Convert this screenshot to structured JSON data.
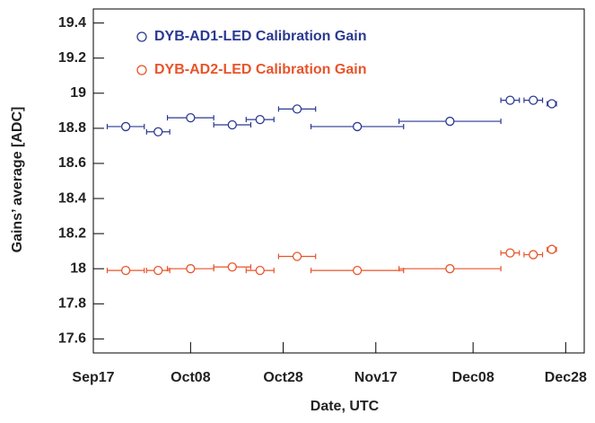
{
  "chart_data": {
    "type": "scatter",
    "x_label": "Date, UTC",
    "y_label": "Gains’ average [ADC]",
    "xlim": [
      "Sep17",
      "Jan01"
    ],
    "xticks": [
      "Sep17",
      "Oct08",
      "Oct28",
      "Nov17",
      "Dec08",
      "Dec28"
    ],
    "ylim": [
      17.52,
      19.48
    ],
    "yticks": [
      17.6,
      17.8,
      18.0,
      18.2,
      18.4,
      18.6,
      18.8,
      19.0,
      19.2,
      19.4
    ],
    "legend": "top-left",
    "series": [
      {
        "name": "DYB-AD1-LED Calibration Gain",
        "color": "#2b3990",
        "x": [
          "Sep24",
          "Oct01",
          "Oct08",
          "Oct17",
          "Oct23",
          "Oct31",
          "Nov13",
          "Dec03",
          "Dec16",
          "Dec21",
          "Dec25"
        ],
        "xerr": [
          4,
          2.5,
          5,
          4,
          3,
          4,
          10,
          11,
          2,
          2,
          1
        ],
        "values": [
          18.81,
          18.78,
          18.86,
          18.82,
          18.85,
          18.91,
          18.81,
          18.84,
          18.96,
          18.96,
          18.94
        ]
      },
      {
        "name": "DYB-AD2-LED Calibration Gain",
        "color": "#e8542a",
        "x": [
          "Sep24",
          "Oct01",
          "Oct08",
          "Oct17",
          "Oct23",
          "Oct31",
          "Nov13",
          "Dec03",
          "Dec16",
          "Dec21",
          "Dec25"
        ],
        "xerr": [
          4,
          2.5,
          5,
          4,
          3,
          4,
          10,
          11,
          2,
          2,
          1
        ],
        "values": [
          17.99,
          17.99,
          18.0,
          18.01,
          17.99,
          18.07,
          17.99,
          18.0,
          18.09,
          18.08,
          18.11
        ]
      }
    ]
  }
}
